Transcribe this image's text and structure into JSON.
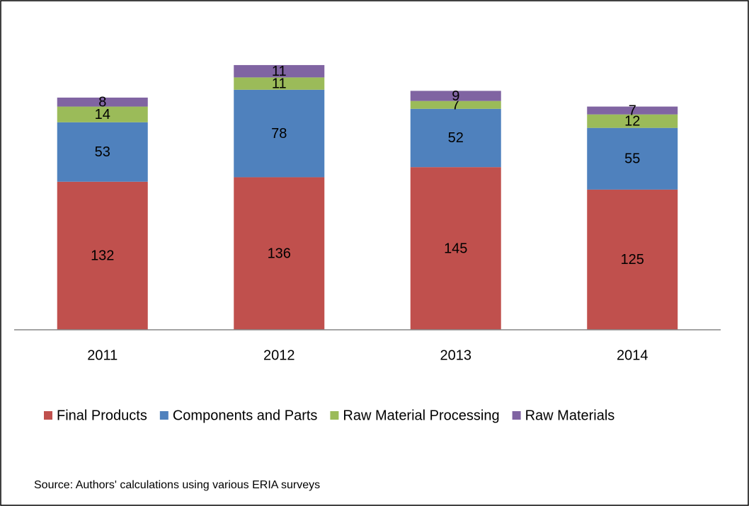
{
  "chart_data": {
    "type": "bar",
    "stacked": true,
    "categories": [
      "2011",
      "2012",
      "2013",
      "2014"
    ],
    "series": [
      {
        "name": "Final Products",
        "color": "#c0504d",
        "values": [
          132,
          136,
          145,
          125
        ]
      },
      {
        "name": "Components and Parts",
        "color": "#4f81bd",
        "values": [
          53,
          78,
          52,
          55
        ]
      },
      {
        "name": "Raw Material Processing",
        "color": "#9bbb59",
        "values": [
          14,
          11,
          7,
          12
        ]
      },
      {
        "name": "Raw Materials",
        "color": "#8064a2",
        "values": [
          8,
          11,
          9,
          7
        ]
      }
    ],
    "legend": "bottom",
    "source": "Source: Authors' calculations  using various ERIA surveys"
  }
}
